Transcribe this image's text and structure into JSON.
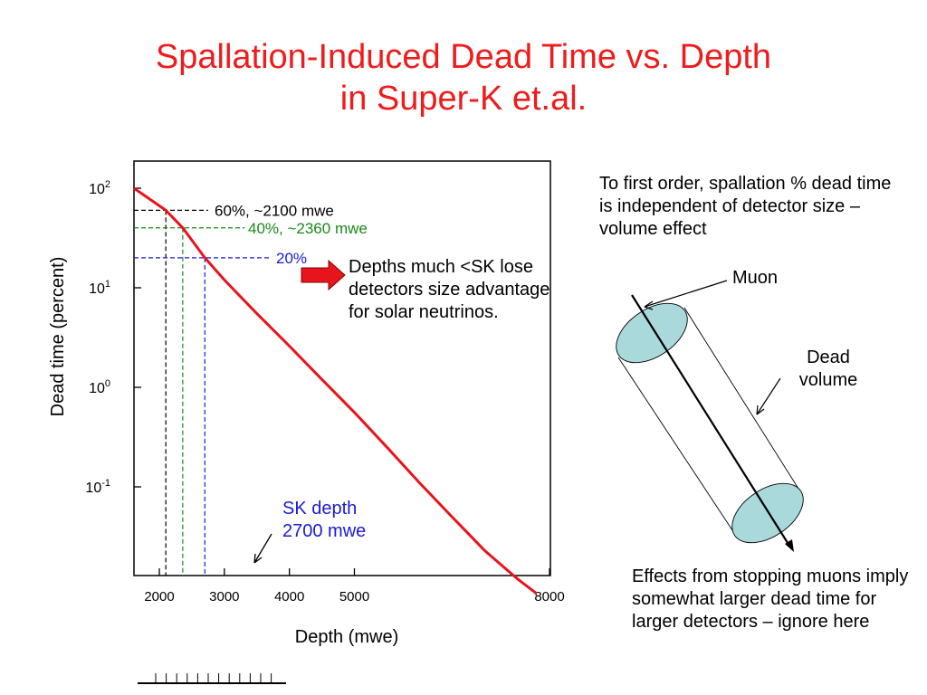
{
  "title": {
    "line1": "Spallation-Induced Dead Time vs. Depth",
    "line2": "in Super-K et.al."
  },
  "chart_data": {
    "type": "line",
    "title": "Spallation-Induced Dead Time vs. Depth in Super-K et.al.",
    "xlabel": "Depth (mwe)",
    "ylabel": "Dead time (percent)",
    "x_scale": "linear",
    "y_scale": "log",
    "xlim": [
      1780,
      8000
    ],
    "ylim": [
      0.01,
      150
    ],
    "xticks": [
      {
        "value": 2000,
        "label": "2000"
      },
      {
        "value": 3000,
        "label": "3000"
      },
      {
        "value": 4000,
        "label": "4000"
      },
      {
        "value": 5000,
        "label": "5000"
      },
      {
        "value": 8000,
        "label": "8000"
      }
    ],
    "yticks": [
      {
        "value": 100,
        "base": "10",
        "exp": "2"
      },
      {
        "value": 10,
        "base": "10",
        "exp": "1"
      },
      {
        "value": 1,
        "base": "10",
        "exp": "0"
      },
      {
        "value": 0.1,
        "base": "10",
        "exp": "-1"
      }
    ],
    "series": [
      {
        "color": "#e8141c",
        "points": [
          {
            "x": 1780,
            "y": 100
          },
          {
            "x": 2100,
            "y": 60
          },
          {
            "x": 2360,
            "y": 40
          },
          {
            "x": 2700,
            "y": 20
          },
          {
            "x": 3000,
            "y": 12
          },
          {
            "x": 3500,
            "y": 5.5
          },
          {
            "x": 4000,
            "y": 2.6
          },
          {
            "x": 4500,
            "y": 1.2
          },
          {
            "x": 5000,
            "y": 0.56
          },
          {
            "x": 5500,
            "y": 0.25
          },
          {
            "x": 6000,
            "y": 0.11
          },
          {
            "x": 6500,
            "y": 0.05
          },
          {
            "x": 7000,
            "y": 0.023
          },
          {
            "x": 7500,
            "y": 0.012
          },
          {
            "x": 7800,
            "y": 0.0085
          }
        ]
      }
    ],
    "markers": [
      {
        "x": 2100,
        "y": 60,
        "label": "60%, ~2100 mwe",
        "color": "#000000"
      },
      {
        "x": 2360,
        "y": 40,
        "label": "40%, ~2360 mwe",
        "color": "#1a8a1a"
      },
      {
        "x": 2700,
        "y": 20,
        "label": "20%",
        "color": "#1a1ad6"
      }
    ],
    "grid": false,
    "legend": "none"
  },
  "annotations": {
    "depths_note": "Depths much <SK lose detectors size advantage for solar neutrinos.",
    "sk_depth_line1": "SK depth",
    "sk_depth_line2": "2700 mwe",
    "right_note": "To first order, spallation % dead time is independent of detector size – volume effect",
    "muon_label": "Muon",
    "dead_volume_line1": "Dead",
    "dead_volume_line2": "volume",
    "bottom_note": "Effects from stopping muons imply somewhat larger dead time for larger detectors – ignore here"
  },
  "colors": {
    "title": "#ee1c1c",
    "curve": "#e8141c",
    "arrow": "#e8141c",
    "cylinder_cap": "#a9d9db",
    "sk_label": "#1a1ad6"
  }
}
